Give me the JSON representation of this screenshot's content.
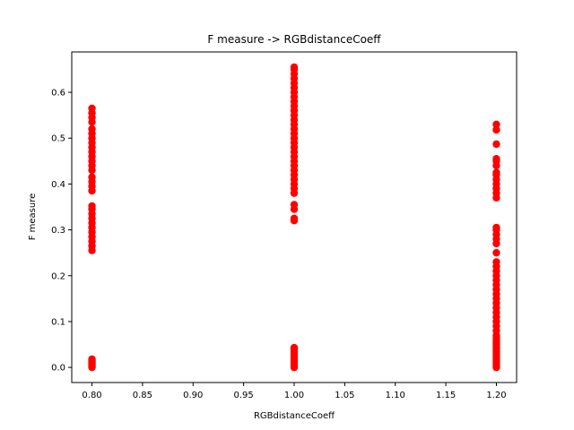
{
  "chart_data": {
    "type": "scatter",
    "title": "F measure -> RGBdistanceCoeff",
    "xlabel": "RGBdistanceCoeff",
    "ylabel": "F measure",
    "xlim": [
      0.78,
      1.22
    ],
    "ylim": [
      -0.033,
      0.688
    ],
    "xticks": [
      "0.80",
      "0.85",
      "0.90",
      "0.95",
      "1.00",
      "1.05",
      "1.10",
      "1.15",
      "1.20"
    ],
    "yticks": [
      "0.0",
      "0.1",
      "0.2",
      "0.3",
      "0.4",
      "0.5",
      "0.6"
    ],
    "grid": false,
    "marker_color": "#ff0000",
    "series": [
      {
        "points": [
          [
            0.8,
            0.0
          ],
          [
            0.8,
            0.003
          ],
          [
            0.8,
            0.006
          ],
          [
            0.8,
            0.009
          ],
          [
            0.8,
            0.012
          ],
          [
            0.8,
            0.015
          ],
          [
            0.8,
            0.018
          ],
          [
            0.8,
            0.255
          ],
          [
            0.8,
            0.265
          ],
          [
            0.8,
            0.275
          ],
          [
            0.8,
            0.285
          ],
          [
            0.8,
            0.295
          ],
          [
            0.8,
            0.305
          ],
          [
            0.8,
            0.315
          ],
          [
            0.8,
            0.325
          ],
          [
            0.8,
            0.335
          ],
          [
            0.8,
            0.345
          ],
          [
            0.8,
            0.352
          ],
          [
            0.8,
            0.385
          ],
          [
            0.8,
            0.395
          ],
          [
            0.8,
            0.405
          ],
          [
            0.8,
            0.415
          ],
          [
            0.8,
            0.43
          ],
          [
            0.8,
            0.44
          ],
          [
            0.8,
            0.45
          ],
          [
            0.8,
            0.46
          ],
          [
            0.8,
            0.47
          ],
          [
            0.8,
            0.48
          ],
          [
            0.8,
            0.49
          ],
          [
            0.8,
            0.5
          ],
          [
            0.8,
            0.51
          ],
          [
            0.8,
            0.52
          ],
          [
            0.8,
            0.535
          ],
          [
            0.8,
            0.545
          ],
          [
            0.8,
            0.555
          ],
          [
            0.8,
            0.565
          ],
          [
            1.0,
            0.0
          ],
          [
            1.0,
            0.005
          ],
          [
            1.0,
            0.01
          ],
          [
            1.0,
            0.015
          ],
          [
            1.0,
            0.02
          ],
          [
            1.0,
            0.025
          ],
          [
            1.0,
            0.03
          ],
          [
            1.0,
            0.035
          ],
          [
            1.0,
            0.04
          ],
          [
            1.0,
            0.043
          ],
          [
            1.0,
            0.32
          ],
          [
            1.0,
            0.325
          ],
          [
            1.0,
            0.345
          ],
          [
            1.0,
            0.355
          ],
          [
            1.0,
            0.38
          ],
          [
            1.0,
            0.39
          ],
          [
            1.0,
            0.4
          ],
          [
            1.0,
            0.41
          ],
          [
            1.0,
            0.42
          ],
          [
            1.0,
            0.43
          ],
          [
            1.0,
            0.44
          ],
          [
            1.0,
            0.45
          ],
          [
            1.0,
            0.46
          ],
          [
            1.0,
            0.47
          ],
          [
            1.0,
            0.48
          ],
          [
            1.0,
            0.49
          ],
          [
            1.0,
            0.5
          ],
          [
            1.0,
            0.51
          ],
          [
            1.0,
            0.52
          ],
          [
            1.0,
            0.53
          ],
          [
            1.0,
            0.54
          ],
          [
            1.0,
            0.55
          ],
          [
            1.0,
            0.56
          ],
          [
            1.0,
            0.57
          ],
          [
            1.0,
            0.58
          ],
          [
            1.0,
            0.59
          ],
          [
            1.0,
            0.6
          ],
          [
            1.0,
            0.61
          ],
          [
            1.0,
            0.62
          ],
          [
            1.0,
            0.63
          ],
          [
            1.0,
            0.64
          ],
          [
            1.0,
            0.65
          ],
          [
            1.0,
            0.655
          ],
          [
            1.2,
            0.0
          ],
          [
            1.2,
            0.005
          ],
          [
            1.2,
            0.01
          ],
          [
            1.2,
            0.015
          ],
          [
            1.2,
            0.02
          ],
          [
            1.2,
            0.025
          ],
          [
            1.2,
            0.03
          ],
          [
            1.2,
            0.035
          ],
          [
            1.2,
            0.04
          ],
          [
            1.2,
            0.045
          ],
          [
            1.2,
            0.05
          ],
          [
            1.2,
            0.055
          ],
          [
            1.2,
            0.06
          ],
          [
            1.2,
            0.065
          ],
          [
            1.2,
            0.07
          ],
          [
            1.2,
            0.08
          ],
          [
            1.2,
            0.09
          ],
          [
            1.2,
            0.1
          ],
          [
            1.2,
            0.11
          ],
          [
            1.2,
            0.12
          ],
          [
            1.2,
            0.13
          ],
          [
            1.2,
            0.14
          ],
          [
            1.2,
            0.15
          ],
          [
            1.2,
            0.16
          ],
          [
            1.2,
            0.17
          ],
          [
            1.2,
            0.18
          ],
          [
            1.2,
            0.19
          ],
          [
            1.2,
            0.2
          ],
          [
            1.2,
            0.21
          ],
          [
            1.2,
            0.22
          ],
          [
            1.2,
            0.23
          ],
          [
            1.2,
            0.25
          ],
          [
            1.2,
            0.27
          ],
          [
            1.2,
            0.28
          ],
          [
            1.2,
            0.29
          ],
          [
            1.2,
            0.3
          ],
          [
            1.2,
            0.305
          ],
          [
            1.2,
            0.37
          ],
          [
            1.2,
            0.38
          ],
          [
            1.2,
            0.39
          ],
          [
            1.2,
            0.4
          ],
          [
            1.2,
            0.41
          ],
          [
            1.2,
            0.42
          ],
          [
            1.2,
            0.425
          ],
          [
            1.2,
            0.44
          ],
          [
            1.2,
            0.45
          ],
          [
            1.2,
            0.455
          ],
          [
            1.2,
            0.487
          ],
          [
            1.2,
            0.518
          ],
          [
            1.2,
            0.53
          ]
        ]
      }
    ]
  }
}
